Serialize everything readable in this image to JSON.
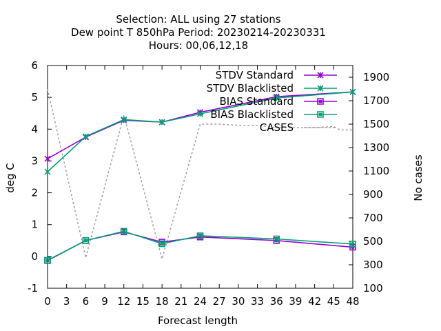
{
  "chart_data": {
    "type": "line",
    "title_lines": [
      "Selection: ALL using    27 stations",
      "Dew point T 850hPa   Period: 20230214-20230331",
      "Hours:  00,06,12,18"
    ],
    "xlabel": "Forecast length",
    "ylabel": "deg C",
    "y2label": "No cases",
    "xlim": [
      0,
      48
    ],
    "xticks": [
      "0",
      "3",
      "6",
      "9",
      "12",
      "15",
      "18",
      "21",
      "24",
      "27",
      "30",
      "33",
      "36",
      "39",
      "42",
      "45",
      "48"
    ],
    "ylim": [
      -1,
      6
    ],
    "yticks": [
      "-1",
      "0",
      "1",
      "2",
      "3",
      "4",
      "5",
      "6"
    ],
    "y2lim": [
      100,
      2000
    ],
    "y2ticks": [
      "100",
      "300",
      "500",
      "700",
      "900",
      "1100",
      "1300",
      "1500",
      "1700",
      "1900"
    ],
    "grid": false,
    "legend_position": "top-right",
    "series": [
      {
        "name": "STDV Standard",
        "axis": "y",
        "color": "#9400d3",
        "marker": "x-star",
        "dash": "",
        "x": [
          0,
          6,
          12,
          18,
          24,
          36,
          48
        ],
        "y": [
          3.07,
          3.75,
          4.28,
          4.22,
          4.53,
          5.02,
          5.17
        ]
      },
      {
        "name": "STDV Blacklisted",
        "axis": "y",
        "color": "#009e73",
        "marker": "x-star",
        "dash": "",
        "x": [
          0,
          6,
          12,
          18,
          24,
          36,
          48
        ],
        "y": [
          2.66,
          3.77,
          4.3,
          4.22,
          4.48,
          4.98,
          5.17
        ]
      },
      {
        "name": "BIAS Standard",
        "axis": "y",
        "color": "#9400d3",
        "marker": "square",
        "dash": "",
        "x": [
          0,
          6,
          12,
          18,
          24,
          36,
          48
        ],
        "y": [
          -0.13,
          0.5,
          0.77,
          0.45,
          0.61,
          0.5,
          0.29
        ]
      },
      {
        "name": "BIAS Blacklisted",
        "axis": "y",
        "color": "#009e73",
        "marker": "square",
        "dash": "",
        "x": [
          0,
          6,
          12,
          18,
          24,
          36,
          48
        ],
        "y": [
          -0.12,
          0.5,
          0.79,
          0.4,
          0.65,
          0.55,
          0.39
        ]
      },
      {
        "name": "CASES",
        "axis": "y2",
        "color": "#a0a0a0",
        "marker": "none",
        "dash": "3,3",
        "x": [
          0,
          6,
          12,
          18,
          24,
          27,
          30,
          33,
          36,
          39,
          42,
          45,
          46,
          48
        ],
        "y": [
          1800,
          360,
          1580,
          350,
          1500,
          1500,
          1490,
          1490,
          1470,
          1470,
          1470,
          1480,
          1450,
          1450
        ]
      }
    ]
  }
}
